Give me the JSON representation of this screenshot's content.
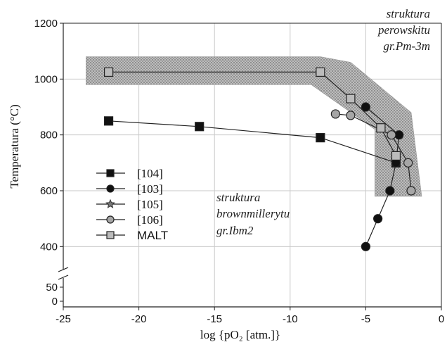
{
  "chart_data": {
    "type": "scatter",
    "xlabel": "log {pO₂ [atm.]}",
    "ylabel": "Temperatura (°C)",
    "xlim": [
      -25,
      0
    ],
    "ylim": [
      0,
      1200
    ],
    "x_ticks": [
      -25,
      -20,
      -15,
      -10,
      -5,
      0
    ],
    "y_ticks_upper": [
      400,
      600,
      800,
      1000,
      1200
    ],
    "y_ticks_lower": [
      0,
      50
    ],
    "y_axis_break": true,
    "grid": true,
    "legend_position": "lower-left",
    "annotations": [
      {
        "lines": [
          "struktura",
          "perowskitu",
          "gr.Pm-3m"
        ]
      },
      {
        "lines": [
          "struktura",
          "brownmillerytu",
          "gr.Ibm2"
        ]
      }
    ],
    "shaded_region": {
      "label": "MALT",
      "points": [
        {
          "x": -23.5,
          "y": 1080
        },
        {
          "x": -8,
          "y": 1080
        },
        {
          "x": -6,
          "y": 1060
        },
        {
          "x": -2,
          "y": 880
        },
        {
          "x": -1.3,
          "y": 580
        },
        {
          "x": -4.4,
          "y": 580
        },
        {
          "x": -4.4,
          "y": 820
        },
        {
          "x": -8.6,
          "y": 980
        },
        {
          "x": -23.5,
          "y": 980
        }
      ]
    },
    "series": [
      {
        "name": "[104]",
        "marker": "square",
        "fill": "#111111",
        "points": [
          {
            "x": -22,
            "y": 850
          },
          {
            "x": -16,
            "y": 830
          },
          {
            "x": -8,
            "y": 790
          },
          {
            "x": -3,
            "y": 700
          }
        ]
      },
      {
        "name": "[103]",
        "marker": "circle",
        "fill": "#111111",
        "points": [
          {
            "x": -5,
            "y": 400
          },
          {
            "x": -4.2,
            "y": 500
          },
          {
            "x": -3.4,
            "y": 600
          },
          {
            "x": -3,
            "y": 700
          },
          {
            "x": -2.8,
            "y": 800
          },
          {
            "x": -5,
            "y": 900
          }
        ]
      },
      {
        "name": "[105]",
        "marker": "star",
        "fill": "#777777",
        "points": []
      },
      {
        "name": "[106]",
        "marker": "circle",
        "fill": "#a6a6a6",
        "points": [
          {
            "x": -2,
            "y": 600
          },
          {
            "x": -2.2,
            "y": 700
          },
          {
            "x": -3.3,
            "y": 800
          },
          {
            "x": -6,
            "y": 870
          },
          {
            "x": -7,
            "y": 875
          }
        ]
      },
      {
        "name": "MALT",
        "marker": "square",
        "fill": "#bbbbbb",
        "points": [
          {
            "x": -22,
            "y": 1025
          },
          {
            "x": -8,
            "y": 1025
          },
          {
            "x": -6,
            "y": 930
          },
          {
            "x": -4,
            "y": 825
          },
          {
            "x": -3,
            "y": 725
          }
        ]
      }
    ]
  }
}
